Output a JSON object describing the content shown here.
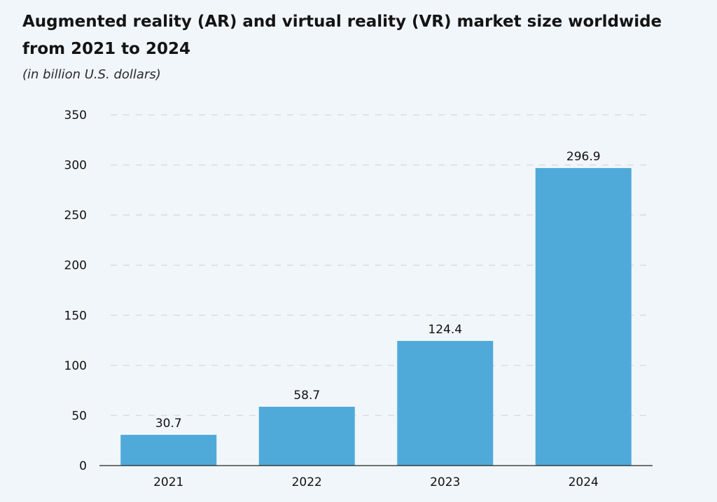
{
  "title": "Augmented reality (AR) and virtual reality (VR) market size worldwide from 2021 to 2024",
  "subtitle": "(in billion U.S. dollars)",
  "colors": {
    "background": "#f1f6fa",
    "bar": "#50aad9",
    "grid": "#d9dde2",
    "axis": "#222222"
  },
  "chart_data": {
    "type": "bar",
    "title": "Augmented reality (AR) and virtual reality (VR) market size worldwide from 2021 to 2024",
    "subtitle": "(in billion U.S. dollars)",
    "xlabel": "",
    "ylabel": "",
    "categories": [
      "2021",
      "2022",
      "2023",
      "2024"
    ],
    "values": [
      30.7,
      58.7,
      124.4,
      296.9
    ],
    "data_labels": [
      "30.7",
      "58.7",
      "124.4",
      "296.9"
    ],
    "ylim": [
      0,
      350
    ],
    "yticks": [
      0,
      50,
      100,
      150,
      200,
      250,
      300,
      350
    ],
    "grid": true,
    "legend": "none"
  }
}
